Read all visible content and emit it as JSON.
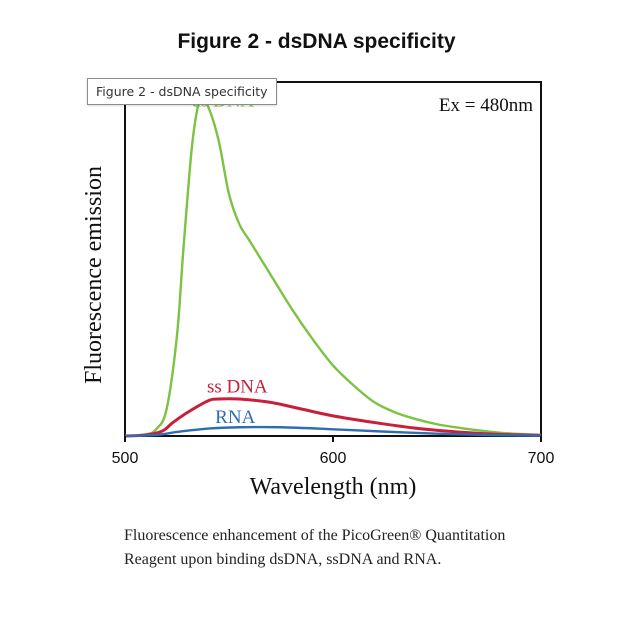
{
  "figure_title": "Figure 2 - dsDNA specificity",
  "tooltip_text": "Figure 2 - dsDNA specificity",
  "caption": {
    "line1": "Fluorescence enhancement of the PicoGreen® Quantitation",
    "line2": "Reagent upon binding dsDNA, ssDNA and RNA."
  },
  "chart_data": {
    "type": "line",
    "title": "Figure 2 - dsDNA specificity",
    "xlabel": "Wavelength (nm)",
    "ylabel": "Fluorescence emission",
    "xlim": [
      500,
      700
    ],
    "ylim": [
      0,
      100
    ],
    "xticks": [
      "500",
      "600",
      "700"
    ],
    "annotation": "Ex = 480nm",
    "grid": false,
    "series": [
      {
        "name": "ds DNA",
        "color": "#7dc242",
        "label_at": {
          "x": 547,
          "y": 98
        },
        "points": [
          [
            500,
            0
          ],
          [
            510,
            0.5
          ],
          [
            515,
            2
          ],
          [
            520,
            8
          ],
          [
            525,
            30
          ],
          [
            528,
            55
          ],
          [
            532,
            85
          ],
          [
            535,
            98
          ],
          [
            537,
            100
          ],
          [
            540,
            98
          ],
          [
            545,
            88
          ],
          [
            550,
            72
          ],
          [
            555,
            63
          ],
          [
            560,
            58
          ],
          [
            570,
            48
          ],
          [
            580,
            38
          ],
          [
            590,
            29
          ],
          [
            600,
            21
          ],
          [
            610,
            15
          ],
          [
            620,
            10
          ],
          [
            630,
            7
          ],
          [
            640,
            5
          ],
          [
            650,
            3.5
          ],
          [
            660,
            2.5
          ],
          [
            680,
            1
          ],
          [
            700,
            0.3
          ]
        ]
      },
      {
        "name": "ss DNA",
        "color": "#c8203a",
        "label_at": {
          "x": 554,
          "y": 13
        },
        "points": [
          [
            500,
            0
          ],
          [
            510,
            0.3
          ],
          [
            518,
            1.5
          ],
          [
            523,
            4
          ],
          [
            530,
            7
          ],
          [
            540,
            10.5
          ],
          [
            545,
            11
          ],
          [
            555,
            11
          ],
          [
            570,
            10
          ],
          [
            585,
            8
          ],
          [
            600,
            6
          ],
          [
            620,
            4
          ],
          [
            640,
            2.3
          ],
          [
            660,
            1.2
          ],
          [
            680,
            0.5
          ],
          [
            700,
            0.2
          ]
        ]
      },
      {
        "name": "RNA",
        "color": "#2f6db3",
        "label_at": {
          "x": 553,
          "y": 3.8
        },
        "points": [
          [
            500,
            0
          ],
          [
            515,
            0.3
          ],
          [
            525,
            1.2
          ],
          [
            540,
            2.2
          ],
          [
            555,
            2.6
          ],
          [
            575,
            2.6
          ],
          [
            600,
            2
          ],
          [
            625,
            1.3
          ],
          [
            650,
            0.7
          ],
          [
            675,
            0.3
          ],
          [
            700,
            0.1
          ]
        ]
      }
    ]
  }
}
